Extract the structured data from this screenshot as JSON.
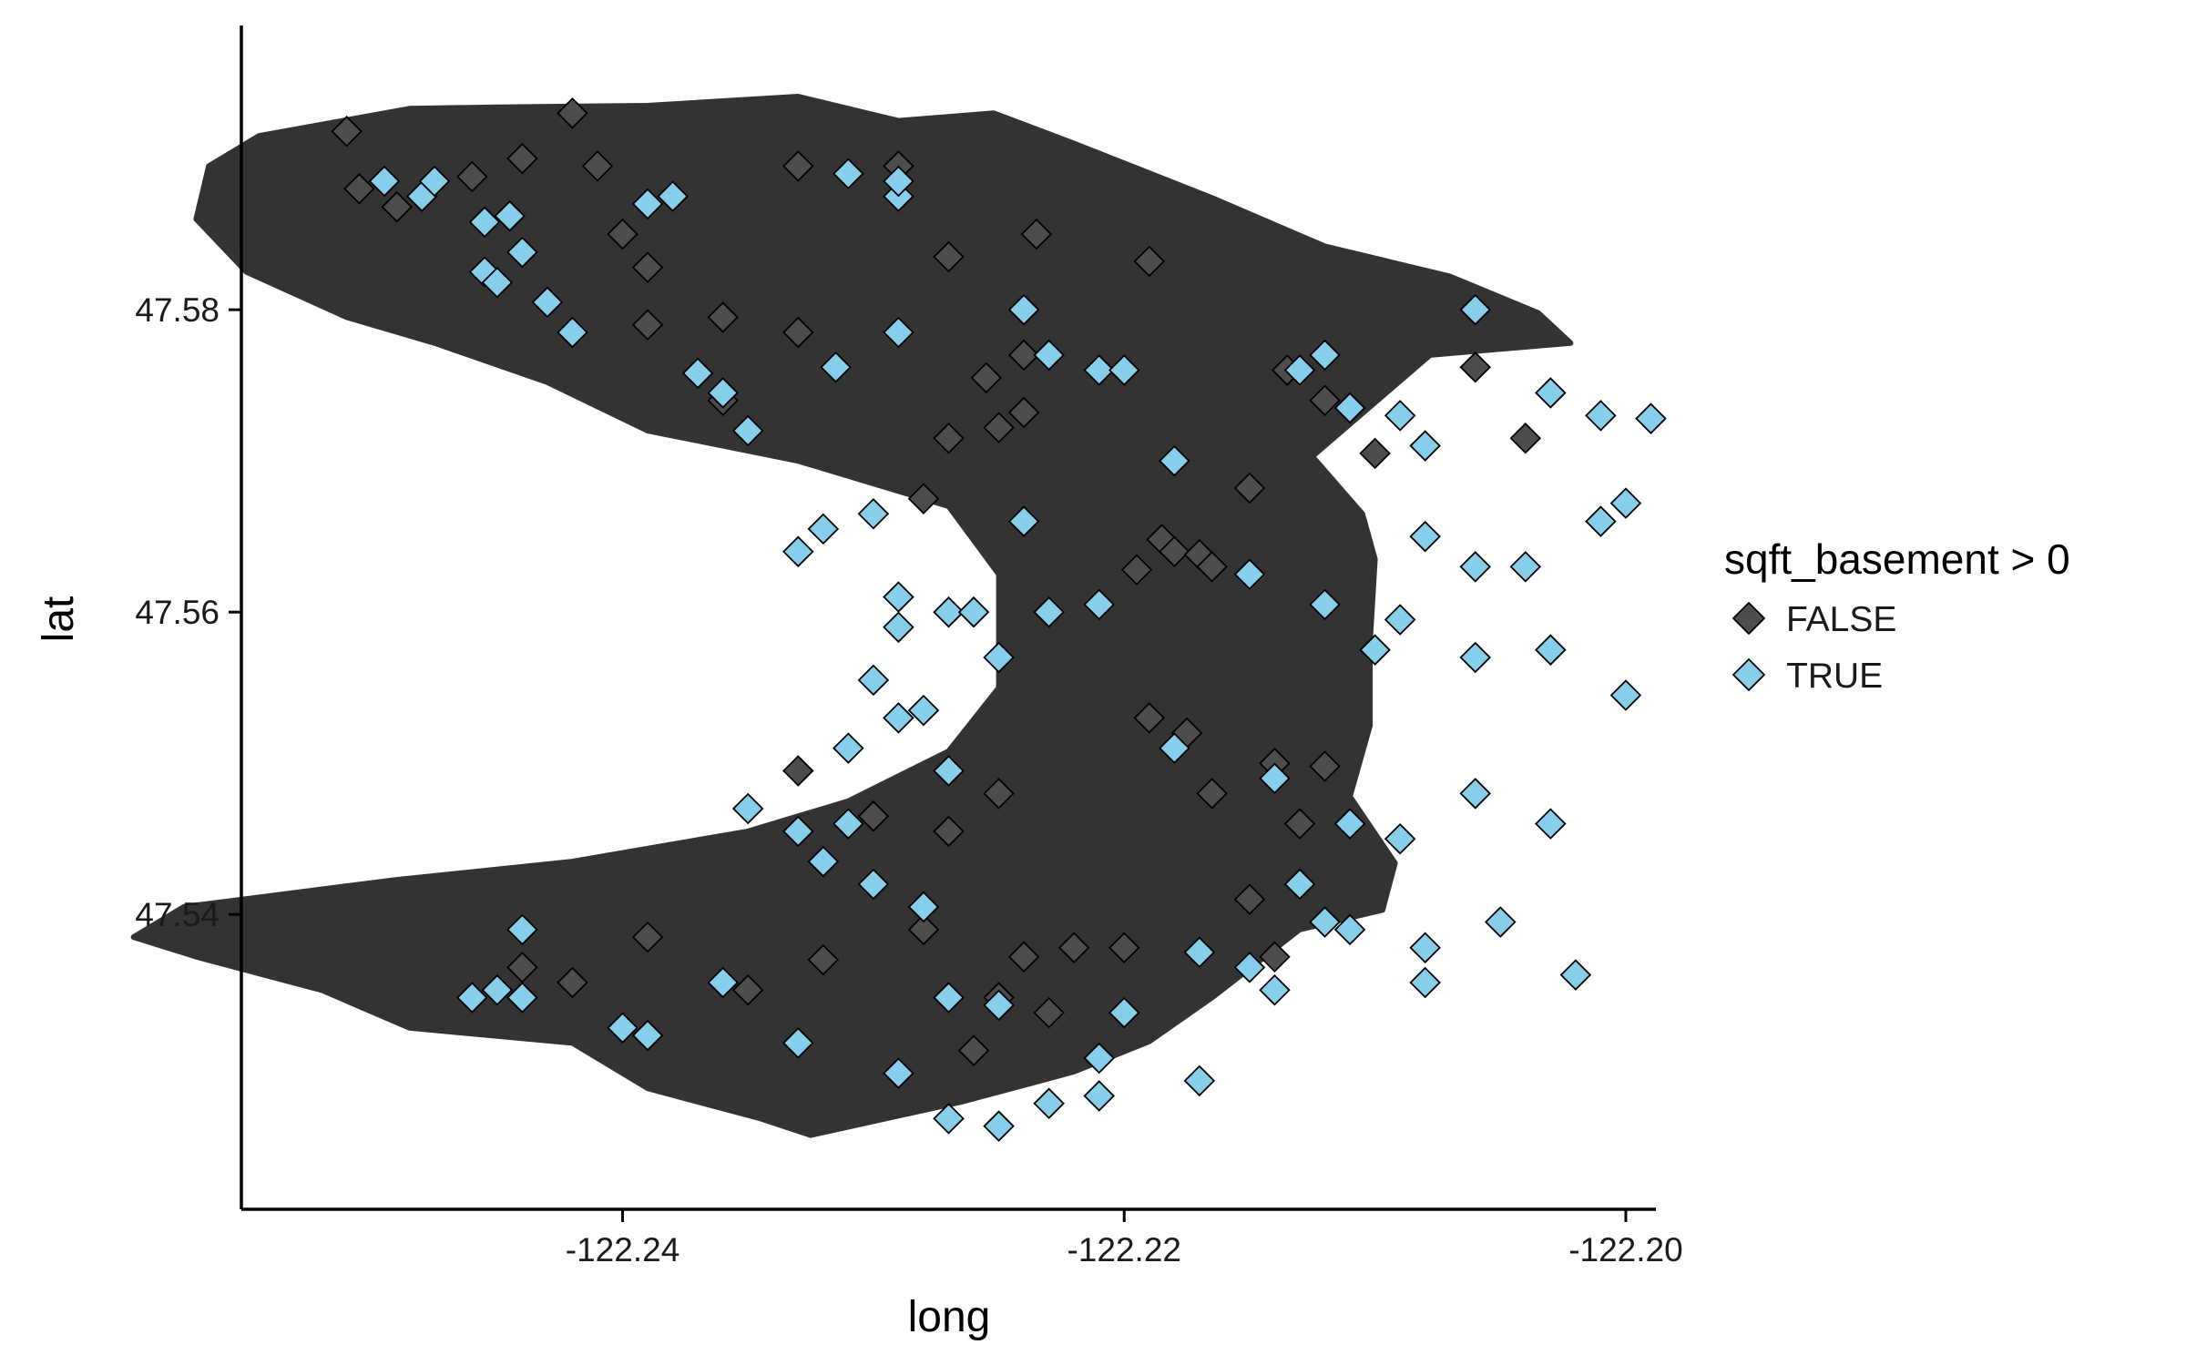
{
  "colors": {
    "background": "#ffffff",
    "land": "#333333",
    "false_fill": "#4d4d4d",
    "true_fill": "#87ceeb",
    "marker_stroke": "#000000"
  },
  "chart_data": {
    "type": "scatter",
    "marker_shape": "diamond",
    "background_region": "filled island polygon (dark grey) behind the points",
    "xlabel": "long",
    "ylabel": "lat",
    "xlim": [
      -122.2552,
      -122.1988
    ],
    "ylim": [
      47.5205,
      47.5988
    ],
    "x_ticks": [
      -122.24,
      -122.22,
      -122.2
    ],
    "x_tick_labels": [
      "-122.24",
      "-122.22",
      "-122.20"
    ],
    "y_ticks": [
      47.54,
      47.56,
      47.58
    ],
    "y_tick_labels": [
      "47.54",
      "47.56",
      "47.58"
    ],
    "grid": false,
    "legend": {
      "title": "sqft_basement > 0",
      "placement": "right",
      "entries": [
        {
          "label": "FALSE",
          "color": "#4d4d4d"
        },
        {
          "label": "TRUE",
          "color": "#87ceeb"
        }
      ]
    },
    "island_outline": [
      [
        -122.2485,
        47.5933
      ],
      [
        -122.245,
        47.5934
      ],
      [
        -122.239,
        47.5935
      ],
      [
        -122.233,
        47.5941
      ],
      [
        -122.229,
        47.5925
      ],
      [
        -122.2252,
        47.593
      ],
      [
        -122.222,
        47.591
      ],
      [
        -122.2165,
        47.5874
      ],
      [
        -122.212,
        47.5842
      ],
      [
        -122.207,
        47.5822
      ],
      [
        -122.2035,
        47.5798
      ],
      [
        -122.2022,
        47.5778
      ],
      [
        -122.2078,
        47.577
      ],
      [
        -122.2125,
        47.5703
      ],
      [
        -122.2105,
        47.5665
      ],
      [
        -122.21,
        47.5635
      ],
      [
        -122.2102,
        47.558
      ],
      [
        -122.2102,
        47.5525
      ],
      [
        -122.211,
        47.5478
      ],
      [
        -122.2092,
        47.5434
      ],
      [
        -122.2097,
        47.5403
      ],
      [
        -122.213,
        47.539
      ],
      [
        -122.2165,
        47.5345
      ],
      [
        -122.219,
        47.5316
      ],
      [
        -122.222,
        47.5296
      ],
      [
        -122.2265,
        47.5276
      ],
      [
        -122.2325,
        47.5254
      ],
      [
        -122.2345,
        47.5265
      ],
      [
        -122.239,
        47.5285
      ],
      [
        -122.242,
        47.5315
      ],
      [
        -122.2485,
        47.5325
      ],
      [
        -122.252,
        47.535
      ],
      [
        -122.257,
        47.5372
      ],
      [
        -122.2595,
        47.5385
      ],
      [
        -122.2575,
        47.5405
      ],
      [
        -122.249,
        47.5423
      ],
      [
        -122.242,
        47.5435
      ],
      [
        -122.235,
        47.5455
      ],
      [
        -122.231,
        47.5475
      ],
      [
        -122.227,
        47.5508
      ],
      [
        -122.225,
        47.555
      ],
      [
        -122.225,
        47.5625
      ],
      [
        -122.227,
        47.567
      ],
      [
        -122.233,
        47.57
      ],
      [
        -122.239,
        47.572
      ],
      [
        -122.243,
        47.5752
      ],
      [
        -122.2475,
        47.5778
      ],
      [
        -122.251,
        47.5795
      ],
      [
        -122.255,
        47.5825
      ],
      [
        -122.257,
        47.586
      ],
      [
        -122.2565,
        47.5895
      ],
      [
        -122.2545,
        47.5915
      ]
    ],
    "series": [
      {
        "name": "FALSE",
        "points": [
          [
            -122.251,
            47.5918
          ],
          [
            -122.2505,
            47.588
          ],
          [
            -122.249,
            47.5868
          ],
          [
            -122.246,
            47.5888
          ],
          [
            -122.244,
            47.59
          ],
          [
            -122.242,
            47.593
          ],
          [
            -122.241,
            47.5895
          ],
          [
            -122.24,
            47.585
          ],
          [
            -122.239,
            47.5828
          ],
          [
            -122.239,
            47.579
          ],
          [
            -122.233,
            47.5895
          ],
          [
            -122.229,
            47.5895
          ],
          [
            -122.227,
            47.5835
          ],
          [
            -122.2235,
            47.585
          ],
          [
            -122.219,
            47.5832
          ],
          [
            -122.236,
            47.5795
          ],
          [
            -122.233,
            47.5785
          ],
          [
            -122.236,
            47.574
          ],
          [
            -122.228,
            47.5675
          ],
          [
            -122.225,
            47.5722
          ],
          [
            -122.227,
            47.5715
          ],
          [
            -122.224,
            47.577
          ],
          [
            -122.2255,
            47.5755
          ],
          [
            -122.224,
            47.5732
          ],
          [
            -122.2185,
            47.5648
          ],
          [
            -122.2195,
            47.5628
          ],
          [
            -122.218,
            47.564
          ],
          [
            -122.217,
            47.5638
          ],
          [
            -122.2165,
            47.563
          ],
          [
            -122.215,
            47.5682
          ],
          [
            -122.2135,
            47.576
          ],
          [
            -122.212,
            47.574
          ],
          [
            -122.21,
            47.5705
          ],
          [
            -122.206,
            47.5762
          ],
          [
            -122.204,
            47.5715
          ],
          [
            -122.219,
            47.553
          ],
          [
            -122.2175,
            47.552
          ],
          [
            -122.2165,
            47.548
          ],
          [
            -122.214,
            47.55
          ],
          [
            -122.212,
            47.5498
          ],
          [
            -122.233,
            47.5495
          ],
          [
            -122.23,
            47.5465
          ],
          [
            -122.227,
            47.5455
          ],
          [
            -122.225,
            47.548
          ],
          [
            -122.228,
            47.539
          ],
          [
            -122.224,
            47.5372
          ],
          [
            -122.22,
            47.5378
          ],
          [
            -122.225,
            47.5345
          ],
          [
            -122.223,
            47.5335
          ],
          [
            -122.226,
            47.531
          ],
          [
            -122.232,
            47.537
          ],
          [
            -122.235,
            47.535
          ],
          [
            -122.239,
            47.5385
          ],
          [
            -122.242,
            47.5355
          ],
          [
            -122.244,
            47.5365
          ],
          [
            -122.215,
            47.541
          ],
          [
            -122.214,
            47.5372
          ],
          [
            -122.213,
            47.546
          ],
          [
            -122.222,
            47.5378
          ]
        ]
      },
      {
        "name": "TRUE",
        "points": [
          [
            -122.2495,
            47.5885
          ],
          [
            -122.248,
            47.5875
          ],
          [
            -122.2475,
            47.5885
          ],
          [
            -122.2455,
            47.5858
          ],
          [
            -122.2445,
            47.5862
          ],
          [
            -122.2455,
            47.5825
          ],
          [
            -122.245,
            47.5818
          ],
          [
            -122.244,
            47.5838
          ],
          [
            -122.243,
            47.5805
          ],
          [
            -122.242,
            47.5785
          ],
          [
            -122.239,
            47.587
          ],
          [
            -122.238,
            47.5875
          ],
          [
            -122.231,
            47.589
          ],
          [
            -122.229,
            47.5875
          ],
          [
            -122.229,
            47.5885
          ],
          [
            -122.237,
            47.5758
          ],
          [
            -122.236,
            47.5745
          ],
          [
            -122.235,
            47.572
          ],
          [
            -122.2315,
            47.5762
          ],
          [
            -122.229,
            47.5785
          ],
          [
            -122.224,
            47.58
          ],
          [
            -122.223,
            47.577
          ],
          [
            -122.221,
            47.576
          ],
          [
            -122.22,
            47.576
          ],
          [
            -122.218,
            47.57
          ],
          [
            -122.213,
            47.576
          ],
          [
            -122.212,
            47.577
          ],
          [
            -122.211,
            47.5735
          ],
          [
            -122.209,
            47.573
          ],
          [
            -122.208,
            47.571
          ],
          [
            -122.206,
            47.58
          ],
          [
            -122.203,
            47.5745
          ],
          [
            -122.201,
            47.573
          ],
          [
            -122.199,
            47.5728
          ],
          [
            -122.208,
            47.565
          ],
          [
            -122.206,
            47.563
          ],
          [
            -122.204,
            47.563
          ],
          [
            -122.201,
            47.566
          ],
          [
            -122.2,
            47.5672
          ],
          [
            -122.2,
            47.5545
          ],
          [
            -122.203,
            47.5575
          ],
          [
            -122.206,
            47.557
          ],
          [
            -122.209,
            47.5595
          ],
          [
            -122.21,
            47.5575
          ],
          [
            -122.212,
            47.5605
          ],
          [
            -122.215,
            47.5625
          ],
          [
            -122.214,
            47.549
          ],
          [
            -122.211,
            47.546
          ],
          [
            -122.209,
            47.545
          ],
          [
            -122.206,
            47.548
          ],
          [
            -122.203,
            47.546
          ],
          [
            -122.213,
            47.542
          ],
          [
            -122.211,
            47.539
          ],
          [
            -122.208,
            47.5378
          ],
          [
            -122.205,
            47.5395
          ],
          [
            -122.202,
            47.536
          ],
          [
            -122.23,
            47.5665
          ],
          [
            -122.232,
            47.5655
          ],
          [
            -122.233,
            47.564
          ],
          [
            -122.229,
            47.561
          ],
          [
            -122.229,
            47.559
          ],
          [
            -122.227,
            47.56
          ],
          [
            -122.226,
            47.56
          ],
          [
            -122.225,
            47.557
          ],
          [
            -122.224,
            47.566
          ],
          [
            -122.223,
            47.56
          ],
          [
            -122.221,
            47.5605
          ],
          [
            -122.218,
            47.551
          ],
          [
            -122.23,
            47.5555
          ],
          [
            -122.229,
            47.553
          ],
          [
            -122.228,
            47.5535
          ],
          [
            -122.231,
            47.551
          ],
          [
            -122.227,
            47.5495
          ],
          [
            -122.235,
            47.547
          ],
          [
            -122.233,
            47.5455
          ],
          [
            -122.232,
            47.5435
          ],
          [
            -122.231,
            47.546
          ],
          [
            -122.23,
            47.542
          ],
          [
            -122.228,
            47.5405
          ],
          [
            -122.233,
            47.5315
          ],
          [
            -122.236,
            47.5355
          ],
          [
            -122.239,
            47.532
          ],
          [
            -122.24,
            47.5325
          ],
          [
            -122.244,
            47.5345
          ],
          [
            -122.245,
            47.535
          ],
          [
            -122.246,
            47.5345
          ],
          [
            -122.244,
            47.539
          ],
          [
            -122.227,
            47.5345
          ],
          [
            -122.225,
            47.534
          ],
          [
            -122.223,
            47.5275
          ],
          [
            -122.22,
            47.5335
          ],
          [
            -122.217,
            47.5375
          ],
          [
            -122.215,
            47.5365
          ],
          [
            -122.214,
            47.535
          ],
          [
            -122.212,
            47.5395
          ],
          [
            -122.208,
            47.5355
          ],
          [
            -122.217,
            47.529
          ],
          [
            -122.221,
            47.528
          ],
          [
            -122.225,
            47.526
          ],
          [
            -122.227,
            47.5265
          ],
          [
            -122.229,
            47.5295
          ],
          [
            -122.221,
            47.5305
          ]
        ]
      }
    ]
  }
}
